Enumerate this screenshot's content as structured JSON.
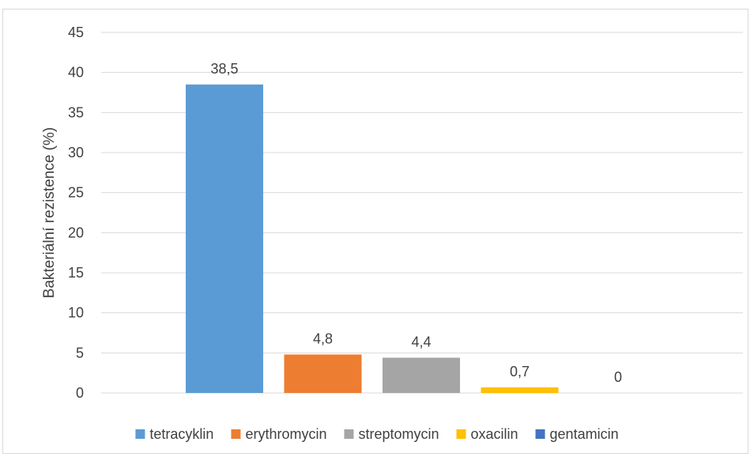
{
  "chart_data": {
    "type": "bar",
    "title": "",
    "xlabel": "",
    "ylabel": "Bakteriální rezistence (%)",
    "ylim": [
      0,
      45
    ],
    "yticks": [
      0,
      5,
      10,
      15,
      20,
      25,
      30,
      35,
      40,
      45
    ],
    "grid": true,
    "legend_position": "bottom",
    "decimal_separator": ",",
    "series": [
      {
        "name": "tetracyklin",
        "value": 38.5,
        "label": "38,5",
        "color": "#5B9BD5"
      },
      {
        "name": "erythromycin",
        "value": 4.8,
        "label": "4,8",
        "color": "#ED7D31"
      },
      {
        "name": "streptomycin",
        "value": 4.4,
        "label": "4,4",
        "color": "#A5A5A5"
      },
      {
        "name": "oxacilin",
        "value": 0.7,
        "label": "0,7",
        "color": "#FFC000"
      },
      {
        "name": "gentamicin",
        "value": 0,
        "label": "0",
        "color": "#4472C4"
      }
    ]
  }
}
